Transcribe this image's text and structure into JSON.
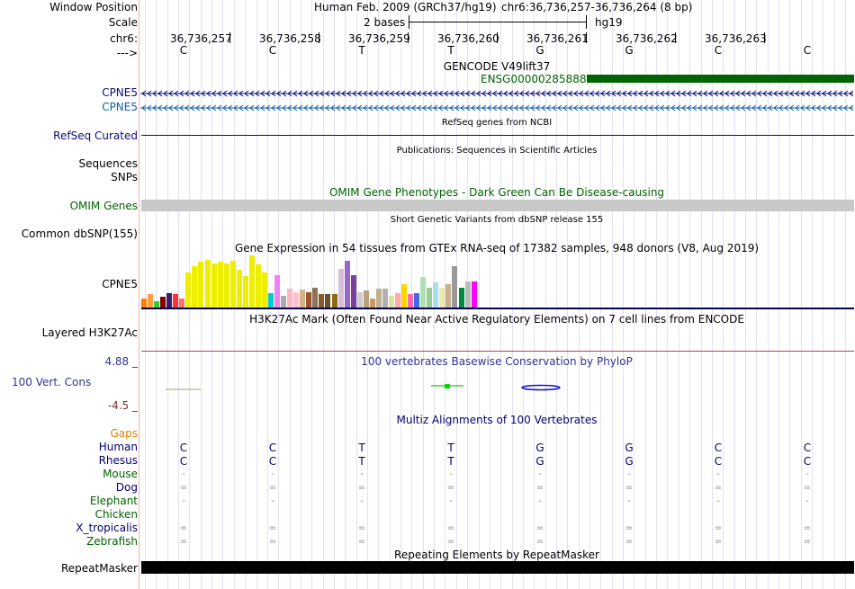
{
  "header": {
    "labels": [
      "Window Position",
      "Scale",
      "chr6:",
      "--->"
    ],
    "assembly": "Human Feb. 2009 (GRCh37/hg19)",
    "position": "chr6:36,736,257-36,736,264 (8 bp)",
    "scale_text": "2 bases",
    "scale_db": "hg19",
    "coords": [
      "36,736,257",
      "36,736,258",
      "36,736,259",
      "36,736,260",
      "36,736,261",
      "36,736,262",
      "36,736,263"
    ],
    "bases": [
      "C",
      "C",
      "T",
      "T",
      "G",
      "G",
      "C",
      "C"
    ]
  },
  "gencode": {
    "title": "GENCODE V49lift37",
    "gene_id": "ENSG00000285888",
    "tracks": [
      "CPNE5",
      "CPNE5"
    ],
    "colors": {
      "dark": "#0c0c78",
      "light": "#0c60a8",
      "bar": "#006400"
    }
  },
  "refseq": {
    "title": "RefSeq genes from NCBI",
    "label": "RefSeq Curated",
    "color": "#0c0c78"
  },
  "publications": {
    "title": "Publications: Sequences in Scientific Articles",
    "labels": [
      "Sequences",
      "SNPs"
    ]
  },
  "omim": {
    "title": "OMIM Gene Phenotypes - Dark Green Can Be Disease-causing",
    "label": "OMIM Genes",
    "color": "#006400"
  },
  "dbsnp": {
    "title": "Short Genetic Variants from dbSNP release 155",
    "label": "Common dbSNP(155)"
  },
  "gtex": {
    "title": "Gene Expression in 54 tissues from GTEx RNA-seq of 17382 samples, 948 donors (V8, Aug 2019)",
    "label": "CPNE5",
    "bars": [
      {
        "v": 0.18,
        "c": "#ff7f00"
      },
      {
        "v": 0.25,
        "c": "#ff9f40"
      },
      {
        "v": 0.12,
        "c": "#33cc33"
      },
      {
        "v": 0.2,
        "c": "#880000"
      },
      {
        "v": 0.28,
        "c": "#3c1e6e"
      },
      {
        "v": 0.25,
        "c": "#ff3333"
      },
      {
        "v": 0.18,
        "c": "#ff7070"
      },
      {
        "v": 0.68,
        "c": "#eeee00"
      },
      {
        "v": 0.8,
        "c": "#eeee00"
      },
      {
        "v": 0.88,
        "c": "#eeee00"
      },
      {
        "v": 0.92,
        "c": "#eeee00"
      },
      {
        "v": 0.85,
        "c": "#eeee00"
      },
      {
        "v": 0.88,
        "c": "#eeee00"
      },
      {
        "v": 0.85,
        "c": "#eeee00"
      },
      {
        "v": 0.9,
        "c": "#eeee00"
      },
      {
        "v": 0.72,
        "c": "#eeee00"
      },
      {
        "v": 0.6,
        "c": "#eeee00"
      },
      {
        "v": 1.0,
        "c": "#eeee00"
      },
      {
        "v": 0.82,
        "c": "#eeee00"
      },
      {
        "v": 0.68,
        "c": "#eeee00"
      },
      {
        "v": 0.28,
        "c": "#00cccc"
      },
      {
        "v": 0.62,
        "c": "#ee82ee"
      },
      {
        "v": 0.22,
        "c": "#aaaaaa"
      },
      {
        "v": 0.36,
        "c": "#ffb6c1"
      },
      {
        "v": 0.3,
        "c": "#ffc0cb"
      },
      {
        "v": 0.34,
        "c": "#d2b48c"
      },
      {
        "v": 0.3,
        "c": "#a0522d"
      },
      {
        "v": 0.38,
        "c": "#8b7355"
      },
      {
        "v": 0.26,
        "c": "#8b5a2b"
      },
      {
        "v": 0.26,
        "c": "#6b4f2a"
      },
      {
        "v": 0.26,
        "c": "#8b6914"
      },
      {
        "v": 0.74,
        "c": "#d8bfd8"
      },
      {
        "v": 0.9,
        "c": "#9966cc"
      },
      {
        "v": 0.62,
        "c": "#7b3f9e"
      },
      {
        "v": 0.3,
        "c": "#cccccc"
      },
      {
        "v": 0.32,
        "c": "#b8a080"
      },
      {
        "v": 0.18,
        "c": "#cc9966"
      },
      {
        "v": 0.36,
        "c": "#c0b090"
      },
      {
        "v": 0.36,
        "c": "#b0b0b0"
      },
      {
        "v": 0.22,
        "c": "#e0e0a0"
      },
      {
        "v": 0.28,
        "c": "#ffaaaa"
      },
      {
        "v": 0.44,
        "c": "#ffd700"
      },
      {
        "v": 0.26,
        "c": "#ff69b4"
      },
      {
        "v": 0.28,
        "c": "#4169e1"
      },
      {
        "v": 0.58,
        "c": "#b0e0b0"
      },
      {
        "v": 0.38,
        "c": "#99cc99"
      },
      {
        "v": 0.48,
        "c": "#aaddee"
      },
      {
        "v": 0.38,
        "c": "#eee8aa"
      },
      {
        "v": 0.44,
        "c": "#c8b090"
      },
      {
        "v": 0.8,
        "c": "#999999"
      },
      {
        "v": 0.38,
        "c": "#008b45"
      },
      {
        "v": 0.5,
        "c": "#bbbbbb"
      },
      {
        "v": 0.5,
        "c": "#ff00ff"
      }
    ]
  },
  "h3k27ac": {
    "title": "H3K27Ac Mark (Often Found Near Active Regulatory Elements) on 7 cell lines from ENCODE",
    "label": "Layered H3K27Ac"
  },
  "conservation": {
    "title": "100 vertebrates Basewise Conservation by PhyloP",
    "label": "100 Vert. Cons",
    "max": "4.88 _",
    "min": "-4.5 _",
    "color": "#323296",
    "min_color": "#7b2d2d"
  },
  "multiz": {
    "title": "Multiz Alignments of 100 Vertebrates",
    "rows": [
      {
        "name": "Gaps",
        "color": "#e08000",
        "seq": [
          "",
          "",
          "",
          "",
          "",
          "",
          "",
          ""
        ]
      },
      {
        "name": "Human",
        "color": "#00006e",
        "seq": [
          "C",
          "C",
          "T",
          "T",
          "G",
          "G",
          "C",
          "C"
        ]
      },
      {
        "name": "Rhesus",
        "color": "#00006e",
        "seq": [
          "C",
          "C",
          "T",
          "T",
          "G",
          "G",
          "C",
          "C"
        ]
      },
      {
        "name": "Mouse",
        "color": "#006400",
        "seq": [
          "-",
          "-",
          "-",
          "-",
          "-",
          "-",
          "-",
          "-"
        ]
      },
      {
        "name": "Dog",
        "color": "#00006e",
        "seq": [
          "=",
          "=",
          "=",
          "=",
          "=",
          "=",
          "=",
          "="
        ]
      },
      {
        "name": "Elephant",
        "color": "#006400",
        "seq": [
          "-",
          "-",
          "-",
          "-",
          "-",
          "-",
          "-",
          "-"
        ]
      },
      {
        "name": "Chicken",
        "color": "#006400",
        "seq": [
          "",
          "",
          "",
          "",
          "",
          "",
          "",
          ""
        ]
      },
      {
        "name": "X_tropicalis",
        "color": "#00006e",
        "seq": [
          "=",
          "=",
          "=",
          "=",
          "=",
          "=",
          "=",
          "="
        ]
      },
      {
        "name": "Zebrafish",
        "color": "#006400",
        "seq": [
          "=",
          "=",
          "=",
          "=",
          "=",
          "=",
          "=",
          "="
        ]
      }
    ]
  },
  "repeatmasker": {
    "title": "Repeating Elements by RepeatMasker",
    "label": "RepeatMasker"
  }
}
